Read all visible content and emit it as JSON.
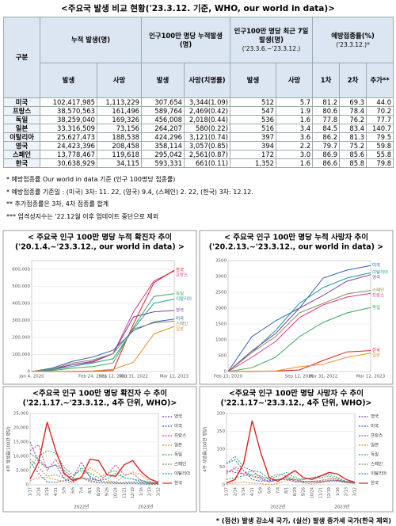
{
  "title": "<주요국 발생 비교 현황('23.3.12. 기준, WHO, our world in data)>",
  "table": {
    "header_top": [
      "구분",
      "누적 발생(명)",
      "인구100만 명당 누적발생(명)",
      "인구100만 명당 최근 7일 발생(명)",
      "예방접종률(%)"
    ],
    "header_notes": [
      "('23.3.6.~'23.3.12.)",
      "('23.3.12.)*"
    ],
    "header_sub": [
      "발생",
      "사망",
      "발생",
      "사망(치명률)",
      "발생",
      "사망",
      "1차",
      "2차",
      "추가**"
    ],
    "rows": [
      [
        "미국",
        "102,417,985",
        "1,113,229",
        "307,654",
        "3,344(1.09)",
        "512",
        "5.7",
        "81.2",
        "69.3",
        "44.0"
      ],
      [
        "프랑스",
        "38,570,563",
        "161,496",
        "589,764",
        "2,469(0.42)",
        "547",
        "1.9",
        "80.6",
        "78.4",
        "70.2"
      ],
      [
        "독일",
        "38,259,040",
        "169,326",
        "456,008",
        "2,018(0.44)",
        "536",
        "1.6",
        "77.8",
        "76.2",
        "77.7"
      ],
      [
        "일본",
        "33,316,509",
        "73,156",
        "264,207",
        "580(0.22)",
        "516",
        "3.4",
        "84.5",
        "83.4",
        "140.7"
      ],
      [
        "이탈리아",
        "25,627,473",
        "188,538",
        "424,296",
        "3,121(0.74)",
        "397",
        "3.6",
        "86.2",
        "81.3",
        "79.5"
      ],
      [
        "영국",
        "24,423,396",
        "208,458",
        "358,114",
        "3,057(0.85)",
        "394",
        "2.2",
        "79.7",
        "75.2",
        "59.8"
      ],
      [
        "스페인",
        "13,778,467",
        "119,618",
        "295,042",
        "2,561(0.87)",
        "172",
        "3.0",
        "86.9",
        "85.6",
        "55.8"
      ],
      [
        "한국",
        "30,638,929",
        "34,115",
        "593,331",
        "661(0.11)",
        "1,352",
        "1.6",
        "86.6",
        "85.8",
        "79.8"
      ]
    ]
  },
  "notes": [
    "* 예방접종률 Our world in data 기준 (인구 100명당 접종률)",
    "* 예방접종률 기준일 : (미국) 3차: 11. 22, (영국) 9.4, (스페인) 2. 22, (한국) 3차: 12.12.",
    "** 추가접종률은 3차, 4차 접종률 합계",
    "*** 엄격성지수는 '22.12월 이후 업데이트 중단으로 제외"
  ],
  "chart_data": [
    {
      "type": "line",
      "title": "< 주요국 인구 100만 명당 누적 확진자 추이",
      "subtitle": "('20.1.4.~'23.3.12., our world in data) >",
      "legend": "end",
      "grid": true,
      "categories": [
        "Jan 4, 2020",
        null,
        null,
        "Feb 24, 2021",
        "Sep 12, 2021",
        "Mar 31, 2022",
        null,
        "Mar 12, 2023"
      ],
      "ylim": [
        0,
        650000
      ],
      "yticks": [
        0,
        {
          "value": 100000,
          "label": "100,000"
        },
        {
          "value": 200000,
          "label": "200,000"
        },
        {
          "value": 300000,
          "label": "300,000"
        },
        {
          "value": 400000,
          "label": "400,000"
        },
        {
          "value": 500000,
          "label": "500,000"
        },
        {
          "value": 600000,
          "label": "600,000"
        }
      ],
      "series": [
        {
          "name": "프랑스",
          "color": "#e0338f",
          "values": [
            0,
            10000,
            40000,
            55000,
            105000,
            350000,
            530000,
            589764
          ]
        },
        {
          "name": "한국",
          "color": "#e02020",
          "values": [
            0,
            0,
            0,
            2000,
            6000,
            280000,
            520000,
            593331
          ]
        },
        {
          "name": "독일",
          "color": "#3aa655",
          "values": [
            0,
            5000,
            20000,
            29000,
            50000,
            260000,
            440000,
            456008
          ]
        },
        {
          "name": "이탈리아",
          "color": "#1f9b9b",
          "values": [
            0,
            10000,
            30000,
            50000,
            75000,
            250000,
            400000,
            424296
          ]
        },
        {
          "name": "영국",
          "color": "#7a3fa0",
          "values": [
            0,
            15000,
            40000,
            60000,
            105000,
            320000,
            350000,
            358114
          ]
        },
        {
          "name": "미국",
          "color": "#2f5fb3",
          "values": [
            0,
            20000,
            60000,
            85000,
            125000,
            240000,
            290000,
            307654
          ]
        },
        {
          "name": "스페인",
          "color": "#8c8c5a",
          "values": [
            0,
            15000,
            50000,
            68000,
            105000,
            250000,
            285000,
            295042
          ]
        },
        {
          "name": "일본",
          "color": "#f08c28",
          "values": [
            0,
            500,
            2000,
            3500,
            13000,
            55000,
            220000,
            264207
          ]
        }
      ]
    },
    {
      "type": "line",
      "title": "< 주요국 인구 100만 명당 누적 사망자 추이",
      "subtitle": "('20.2.13.~'23.3.12., our world in data) >",
      "legend": "end",
      "grid": true,
      "categories": [
        "Feb 13, 2020",
        null,
        null,
        "Sep 12, 2021",
        "Mar 31, 2022",
        null,
        "Mar 12, 2023"
      ],
      "ylim": [
        0,
        3500
      ],
      "yticks": [
        0,
        500,
        1000,
        1500,
        2000,
        2500,
        3000,
        3500
      ],
      "series": [
        {
          "name": "미국",
          "color": "#2f5fb3",
          "values": [
            0,
            1100,
            1600,
            2000,
            2950,
            3200,
            3344
          ]
        },
        {
          "name": "이탈리아",
          "color": "#1f9b9b",
          "values": [
            0,
            600,
            1300,
            2150,
            2650,
            2950,
            3121
          ]
        },
        {
          "name": "영국",
          "color": "#7a3fa0",
          "values": [
            0,
            650,
            1200,
            2000,
            2400,
            2850,
            3057
          ]
        },
        {
          "name": "스페인",
          "color": "#8c8c5a",
          "values": [
            0,
            600,
            1100,
            1850,
            2150,
            2450,
            2561
          ]
        },
        {
          "name": "프랑스",
          "color": "#e0338f",
          "values": [
            0,
            450,
            950,
            1700,
            2100,
            2350,
            2469
          ]
        },
        {
          "name": "독일",
          "color": "#3aa655",
          "values": [
            0,
            120,
            450,
            1100,
            1550,
            1850,
            2018
          ]
        },
        {
          "name": "한국",
          "color": "#e02020",
          "values": [
            0,
            5,
            15,
            50,
            350,
            620,
            661
          ]
        },
        {
          "name": "일본",
          "color": "#f08c28",
          "values": [
            0,
            5,
            20,
            150,
            230,
            450,
            580
          ]
        }
      ]
    },
    {
      "type": "line",
      "title": "<주요국 인구 100만 명당 확진자 수 추이",
      "subtitle": "('22.1.17.~'23.3.12., 4주 단위, WHO)>",
      "legend": "right",
      "grid": true,
      "y_label": "4주 발생률(100만 명당)",
      "x_groups": [
        "2022년",
        "2023년"
      ],
      "categories": [
        "1/17",
        "2/14",
        "3/14",
        "4/11",
        "5/9",
        "6/6",
        "7/4",
        "8/1",
        "8/29",
        "9/26",
        "10/24",
        "11/21",
        "12/19",
        "1/16",
        "2/13",
        "3/12"
      ],
      "ylim": [
        0,
        25000
      ],
      "yticks": [
        0,
        {
          "value": 5000,
          "label": "5,000"
        },
        {
          "value": 10000,
          "label": "10,000"
        },
        {
          "value": 15000,
          "label": "15,000"
        },
        {
          "value": 20000,
          "label": "20,000"
        },
        {
          "value": 25000,
          "label": "25,000"
        }
      ],
      "series": [
        {
          "name": "영국",
          "color": "#7a3fa0",
          "dashed": true,
          "values": [
            15000,
            8000,
            6000,
            7000,
            2000,
            1000,
            2500,
            1500,
            800,
            600,
            500,
            400,
            500,
            300,
            200,
            150
          ]
        },
        {
          "name": "미국",
          "color": "#2f5fb3",
          "dashed": true,
          "values": [
            8000,
            4000,
            1000,
            800,
            1500,
            2000,
            2500,
            2000,
            1500,
            900,
            700,
            800,
            1000,
            700,
            500,
            400
          ]
        },
        {
          "name": "프랑스",
          "color": "#e0338f",
          "dashed": true,
          "values": [
            12000,
            14000,
            5000,
            9000,
            3500,
            2500,
            8000,
            2500,
            1500,
            3500,
            7000,
            3500,
            4000,
            1500,
            800,
            600
          ]
        },
        {
          "name": "일본",
          "color": "#f08c28",
          "dashed": true,
          "values": [
            1500,
            2500,
            2500,
            1800,
            1200,
            600,
            3000,
            6000,
            4000,
            1500,
            1000,
            3000,
            4500,
            3500,
            1200,
            500
          ]
        },
        {
          "name": "독일",
          "color": "#3aa655",
          "dashed": true,
          "values": [
            6000,
            10000,
            12000,
            11000,
            6000,
            3500,
            5000,
            4000,
            2500,
            4000,
            5000,
            2500,
            2000,
            1500,
            900,
            700
          ]
        },
        {
          "name": "스페인",
          "color": "#8c8c5a",
          "dashed": true,
          "values": [
            9000,
            6000,
            3000,
            3500,
            2500,
            2000,
            2500,
            1000,
            700,
            600,
            500,
            500,
            600,
            400,
            300,
            200
          ]
        },
        {
          "name": "이탈리아",
          "color": "#1f9b9b",
          "dashed": true,
          "values": [
            11000,
            9000,
            6000,
            7000,
            5000,
            2500,
            6000,
            3000,
            1500,
            2000,
            4000,
            2500,
            2000,
            1000,
            500,
            400
          ]
        },
        {
          "name": "한국",
          "color": "#e02020",
          "dashed": false,
          "values": [
            2000,
            8000,
            22000,
            12000,
            4000,
            1500,
            2500,
            9000,
            8500,
            3500,
            3000,
            7000,
            8500,
            4500,
            2000,
            900
          ]
        }
      ]
    },
    {
      "type": "line",
      "title": "<주요국 인구 100만 명당 사망자 수 추이",
      "subtitle": "('22.1.17~'23.3.12., 4주 단위, WHO)>",
      "legend": "right",
      "grid": true,
      "y_label": "4주 사망률(100만 명당)",
      "x_groups": [
        "2022년",
        "2023년"
      ],
      "categories": [
        "1/17",
        "2/14",
        "3/14",
        "4/11",
        "5/9",
        "6/6",
        "7/4",
        "8/1",
        "8/29",
        "9/26",
        "10/24",
        "11/21",
        "12/19",
        "1/16",
        "2/13",
        "3/12"
      ],
      "ylim": [
        0,
        200
      ],
      "yticks": [
        0,
        50,
        100,
        150,
        200
      ],
      "series": [
        {
          "name": "영국",
          "color": "#7a3fa0",
          "dashed": true,
          "values": [
            40,
            35,
            30,
            40,
            20,
            8,
            15,
            20,
            10,
            8,
            8,
            7,
            10,
            12,
            8,
            6
          ]
        },
        {
          "name": "미국",
          "color": "#2f5fb3",
          "dashed": true,
          "values": [
            60,
            70,
            40,
            15,
            10,
            12,
            15,
            15,
            14,
            10,
            8,
            9,
            12,
            12,
            9,
            7
          ]
        },
        {
          "name": "프랑스",
          "color": "#e0338f",
          "dashed": true,
          "values": [
            35,
            45,
            30,
            25,
            15,
            8,
            15,
            15,
            8,
            8,
            10,
            12,
            18,
            12,
            6,
            4
          ]
        },
        {
          "name": "일본",
          "color": "#f08c28",
          "dashed": true,
          "values": [
            2,
            5,
            8,
            5,
            3,
            1,
            3,
            12,
            15,
            5,
            2,
            6,
            15,
            18,
            8,
            4
          ]
        },
        {
          "name": "독일",
          "color": "#3aa655",
          "dashed": true,
          "values": [
            15,
            20,
            25,
            30,
            25,
            15,
            15,
            20,
            15,
            15,
            20,
            20,
            25,
            15,
            8,
            5
          ]
        },
        {
          "name": "스페인",
          "color": "#8c8c5a",
          "dashed": true,
          "values": [
            30,
            50,
            40,
            25,
            20,
            20,
            30,
            25,
            15,
            8,
            8,
            10,
            12,
            10,
            6,
            4
          ]
        },
        {
          "name": "이탈리아",
          "color": "#1f9b9b",
          "dashed": true,
          "values": [
            60,
            80,
            50,
            40,
            35,
            15,
            25,
            35,
            20,
            15,
            20,
            25,
            30,
            20,
            10,
            6
          ]
        },
        {
          "name": "한국",
          "color": "#e02020",
          "dashed": false,
          "values": [
            5,
            15,
            60,
            180,
            90,
            20,
            10,
            25,
            40,
            20,
            15,
            25,
            35,
            30,
            15,
            7
          ]
        }
      ]
    }
  ],
  "footer": "* (점선) 발생 감소세 국가, (실선) 발생 증가세 국가(한국 제외)"
}
